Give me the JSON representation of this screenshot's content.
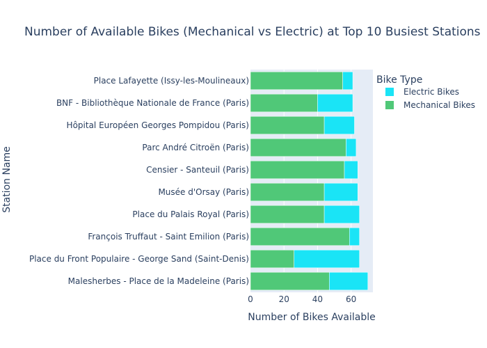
{
  "chart_data": {
    "type": "bar",
    "orientation": "horizontal",
    "barmode": "stack",
    "title": "Number of Available Bikes (Mechanical vs Electric) at Top 10 Busiest Stations",
    "xlabel": "Number of Bikes Available",
    "ylabel": "Station Name",
    "xlim": [
      0,
      73
    ],
    "xticks": [
      0,
      20,
      40,
      60
    ],
    "grid": true,
    "legend": {
      "title": "Bike Type",
      "placement": "top-right"
    },
    "categories": [
      "Malesherbes - Place de la Madeleine (Paris)",
      "Place du Front Populaire - George Sand (Saint-Denis)",
      "François Truffaut - Saint Emilion (Paris)",
      "Place du Palais Royal (Paris)",
      "Musée d'Orsay (Paris)",
      "Censier - Santeuil (Paris)",
      "Parc André Citroën (Paris)",
      "Hôpital Européen Georges Pompidou (Paris)",
      "BNF - Bibliothèque Nationale de France (Paris)",
      "Place Lafayette (Issy-les-Moulineaux)"
    ],
    "series": [
      {
        "name": "Mechanical Bikes",
        "color": "#50c878",
        "values": [
          47,
          26,
          59,
          44,
          44,
          56,
          57,
          44,
          40,
          55
        ]
      },
      {
        "name": "Electric Bikes",
        "color": "#1ae4f6",
        "values": [
          23,
          39,
          6,
          21,
          20,
          8,
          6,
          18,
          21,
          6
        ]
      }
    ],
    "legend_order": [
      "Electric Bikes",
      "Mechanical Bikes"
    ]
  },
  "colors": {
    "plot_bg": "#e5ecf6",
    "grid": "#ffffff",
    "text": "#2a3f5f"
  }
}
